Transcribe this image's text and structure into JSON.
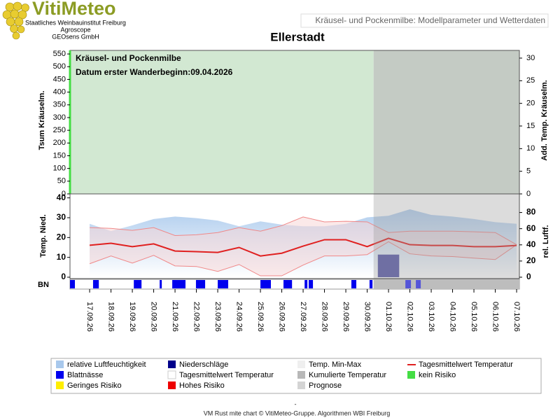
{
  "header": {
    "logo": "VitiMeteo",
    "lines": [
      "Staatliches Weinbauinstitut Freiburg",
      "Agroscope",
      "GEOsens GmbH"
    ],
    "banner": "Kräusel- und Pockenmilbe: Modellparameter und Wetterdaten"
  },
  "chart_data": [
    {
      "type": "band",
      "title": "Ellerstadt",
      "ylabel": "Tsum Kräuselm.",
      "y2label": "Add. Temp. Kräuselm.",
      "annotations": [
        "Kräusel- und Pockenmilbe",
        "Datum  erster Wanderbeginn:09.04.2026"
      ],
      "ylim": [
        0,
        564
      ],
      "yticks": [
        0,
        50,
        100,
        150,
        200,
        250,
        300,
        350,
        400,
        450,
        500,
        550
      ],
      "y2lim": [
        0,
        31.7
      ],
      "y2ticks": [
        0,
        5,
        10,
        15,
        20,
        25,
        30
      ],
      "risk_color": "#d2e8d2",
      "forecast_color": "#c4cbc4",
      "axis_color": "#44dd44"
    },
    {
      "type": "line",
      "ylabel": "Temp. Nied.",
      "y2label": "rel. Luftf.",
      "strip_label": "BN",
      "categories": [
        "17.09.26",
        "18.09.26",
        "19.09.26",
        "20.09.26",
        "21.09.26",
        "22.09.26",
        "23.09.26",
        "24.09.26",
        "25.09.26",
        "26.09.26",
        "27.09.26",
        "28.09.26",
        "29.09.26",
        "30.09.26",
        "01.10.26",
        "02.10.26",
        "03.10.26",
        "04.10.26",
        "05.10.26",
        "06.10.26",
        "07.10.26"
      ],
      "xlim": [
        -0.92,
        20.13
      ],
      "forecast_start": 13.3,
      "ylim": [
        0,
        42
      ],
      "yticks": [
        0,
        10,
        20,
        30,
        40
      ],
      "y2lim": [
        0,
        103
      ],
      "y2ticks": [
        0,
        20,
        40,
        60,
        80
      ],
      "humidity": {
        "color": "#a8c8ec",
        "axis": "y2",
        "values": [
          66,
          57,
          64,
          72,
          75,
          73,
          70,
          63,
          69,
          65,
          63,
          63,
          66,
          74,
          76,
          84,
          77,
          75,
          72,
          68,
          66
        ]
      },
      "temp_range": {
        "color": "#f08888",
        "max": [
          25,
          24.6,
          23.6,
          25,
          21,
          21.4,
          22.5,
          25,
          23.2,
          26,
          30.4,
          27.9,
          28.2,
          27.9,
          22.5,
          23.2,
          23.2,
          23.2,
          22.9,
          22.5,
          16.4
        ],
        "min": [
          6.8,
          10.7,
          7.1,
          11,
          5.7,
          5.4,
          2.9,
          6.4,
          0.7,
          0.7,
          6.1,
          10.7,
          10.7,
          11.4,
          17.9,
          11.8,
          10.7,
          10.4,
          9.6,
          8.9,
          16.4
        ]
      },
      "temp_mean": {
        "color": "#e02020",
        "values": [
          16.1,
          17.1,
          15.4,
          16.8,
          13.2,
          12.9,
          12.5,
          15,
          10.7,
          12.1,
          15.7,
          18.9,
          18.9,
          15.4,
          19.6,
          16.4,
          16,
          16,
          15.4,
          15.4,
          16
        ]
      },
      "precipitation": {
        "color": "#5858a8",
        "values": [
          0,
          0,
          0,
          0,
          0,
          0,
          0,
          0,
          0,
          0,
          0,
          0,
          0,
          0,
          11.4,
          0,
          0,
          0,
          0,
          0,
          0
        ]
      },
      "leaf_wetness": {
        "color": "#0000ee",
        "intervals": [
          [
            -0.92,
            -0.69
          ],
          [
            0.16,
            0.43
          ],
          [
            2.07,
            2.43
          ],
          [
            3.28,
            3.38
          ],
          [
            3.87,
            4.49
          ],
          [
            4.98,
            5.41
          ],
          [
            6.0,
            6.49
          ],
          [
            8.0,
            8.49
          ],
          [
            9.08,
            9.48
          ],
          [
            10.07,
            10.2
          ],
          [
            10.26,
            10.46
          ],
          [
            12.26,
            12.49
          ],
          [
            13.11,
            13.25
          ],
          [
            14.79,
            15.05
          ],
          [
            15.28,
            15.51
          ]
        ]
      }
    }
  ],
  "legend": [
    {
      "label": "relative Luftfeuchtigkeit",
      "color": "#a8c8ec"
    },
    {
      "label": "Niederschläge",
      "color": "#00008b"
    },
    {
      "label": "Temp. Min-Max",
      "color": "#efefef"
    },
    {
      "label": "Tagesmittelwert Temperatur",
      "color": "#e02020",
      "kind": "line"
    },
    {
      "label": "Blattnässe",
      "color": "#0000ee"
    },
    {
      "label": "Tagesmittelwert Temperatur",
      "color": "#ffffff"
    },
    {
      "label": "Kumulierte Temperatur",
      "color": "#b8b8b8"
    },
    {
      "label": "kein Risiko",
      "color": "#44dd44"
    },
    {
      "label": "Geringes Risiko",
      "color": "#ffee00"
    },
    {
      "label": "Hohes Risiko",
      "color": "#ee0000"
    },
    {
      "label": "Prognose",
      "color": "#d4d4d4"
    }
  ],
  "footer": {
    "dash": "-",
    "credit": "VM Rust mite chart © VitiMeteo-Gruppe. Algorithmen WBI Freiburg"
  }
}
